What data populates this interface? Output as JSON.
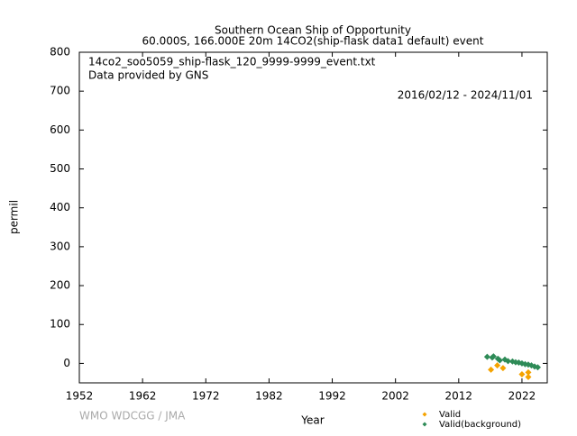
{
  "chart_data": {
    "type": "scatter",
    "title": "Southern Ocean Ship of Opportunity",
    "subtitle": "60.000S, 166.000E 20m    14CO2(ship-flask data1 default) event",
    "annotations": [
      "14co2_soo5059_ship-flask_120_9999-9999_event.txt",
      "Data provided by GNS"
    ],
    "date_range": "2016/02/12 - 2024/11/01",
    "credit": "WMO WDCGG / JMA",
    "x_label": "Year",
    "y_label": "permil",
    "xlim": [
      1952,
      2026
    ],
    "xticks": [
      1952,
      1962,
      1972,
      1982,
      1992,
      2002,
      2012,
      2022
    ],
    "ylim": [
      -50,
      800
    ],
    "yticks": [
      0,
      100,
      200,
      300,
      400,
      500,
      600,
      700,
      800
    ],
    "legend": "bottom-right",
    "series": [
      {
        "name": "Valid",
        "color": "#f5a300",
        "x": [
          2017.1,
          2018.1,
          2019.0,
          2022.0,
          2023.0,
          2023.0
        ],
        "values": [
          -16,
          -5,
          -12,
          -28,
          -35,
          -23
        ]
      },
      {
        "name": "Valid(background)",
        "color": "#2e8b57",
        "x": [
          2016.5,
          2017.3,
          2017.5,
          2018.2,
          2018.5,
          2019.3,
          2019.8,
          2020.5,
          2021.0,
          2021.5,
          2022.0,
          2022.5,
          2023.0,
          2023.5,
          2024.0,
          2024.5
        ],
        "values": [
          17,
          15,
          18,
          12,
          8,
          10,
          6,
          5,
          3,
          2,
          0,
          -2,
          -3,
          -5,
          -8,
          -10
        ]
      }
    ]
  }
}
